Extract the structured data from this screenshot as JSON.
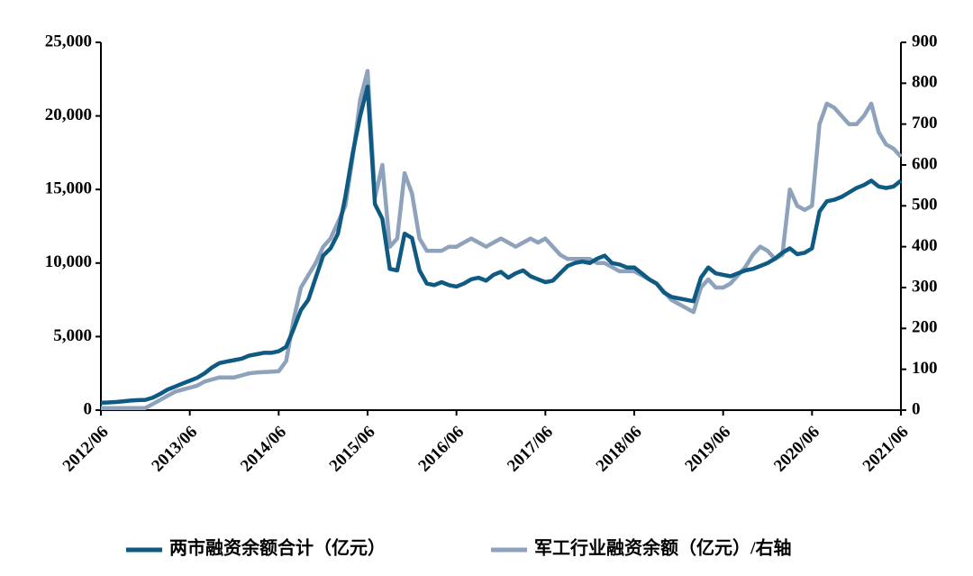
{
  "chart_data": {
    "type": "line",
    "x": [
      "2012/06",
      "2012/07",
      "2012/08",
      "2012/09",
      "2012/10",
      "2012/11",
      "2012/12",
      "2013/01",
      "2013/02",
      "2013/03",
      "2013/04",
      "2013/05",
      "2013/06",
      "2013/07",
      "2013/08",
      "2013/09",
      "2013/10",
      "2013/11",
      "2013/12",
      "2014/01",
      "2014/02",
      "2014/03",
      "2014/04",
      "2014/05",
      "2014/06",
      "2014/07",
      "2014/08",
      "2014/09",
      "2014/10",
      "2014/11",
      "2014/12",
      "2015/01",
      "2015/02",
      "2015/03",
      "2015/04",
      "2015/05",
      "2015/06",
      "2015/07",
      "2015/08",
      "2015/09",
      "2015/10",
      "2015/11",
      "2015/12",
      "2016/01",
      "2016/02",
      "2016/03",
      "2016/04",
      "2016/05",
      "2016/06",
      "2016/07",
      "2016/08",
      "2016/09",
      "2016/10",
      "2016/11",
      "2016/12",
      "2017/01",
      "2017/02",
      "2017/03",
      "2017/04",
      "2017/05",
      "2017/06",
      "2017/07",
      "2017/08",
      "2017/09",
      "2017/10",
      "2017/11",
      "2017/12",
      "2018/01",
      "2018/02",
      "2018/03",
      "2018/04",
      "2018/05",
      "2018/06",
      "2018/07",
      "2018/08",
      "2018/09",
      "2018/10",
      "2018/11",
      "2018/12",
      "2019/01",
      "2019/02",
      "2019/03",
      "2019/04",
      "2019/05",
      "2019/06",
      "2019/07",
      "2019/08",
      "2019/09",
      "2019/10",
      "2019/11",
      "2019/12",
      "2020/01",
      "2020/02",
      "2020/03",
      "2020/04",
      "2020/05",
      "2020/06",
      "2020/07",
      "2020/08",
      "2020/09",
      "2020/10",
      "2020/11",
      "2020/12",
      "2021/01",
      "2021/02",
      "2021/03",
      "2021/04",
      "2021/05",
      "2021/06"
    ],
    "xticks": [
      "2012/06",
      "2013/06",
      "2014/06",
      "2015/06",
      "2016/06",
      "2017/06",
      "2018/06",
      "2019/06",
      "2020/06",
      "2021/06"
    ],
    "ylim": [
      0,
      25000
    ],
    "yticks": [
      0,
      {
        "value": 5000,
        "label": "5,000"
      },
      {
        "value": 10000,
        "label": "10,000"
      },
      {
        "value": 15000,
        "label": "15,000"
      },
      {
        "value": 20000,
        "label": "20,000"
      },
      {
        "value": 25000,
        "label": "25,000"
      }
    ],
    "y2lim": [
      0,
      900
    ],
    "y2ticks": [
      0,
      100,
      200,
      300,
      400,
      500,
      600,
      700,
      800,
      900
    ],
    "series": [
      {
        "name": "两市融资余额合计（亿元）",
        "color": "#0e5a82",
        "axis": "y",
        "values": [
          500,
          520,
          550,
          600,
          650,
          680,
          700,
          850,
          1100,
          1400,
          1600,
          1800,
          2000,
          2200,
          2500,
          2900,
          3200,
          3300,
          3400,
          3500,
          3700,
          3800,
          3900,
          3900,
          4000,
          4300,
          5500,
          6800,
          7500,
          9000,
          10500,
          11000,
          12000,
          14500,
          17500,
          20000,
          22000,
          14000,
          13000,
          9600,
          9500,
          12000,
          11700,
          9500,
          8600,
          8500,
          8700,
          8500,
          8400,
          8600,
          8900,
          9000,
          8800,
          9200,
          9400,
          9000,
          9300,
          9500,
          9100,
          8900,
          8700,
          8800,
          9300,
          9800,
          10000,
          10100,
          10000,
          10300,
          10500,
          10000,
          9900,
          9700,
          9700,
          9300,
          8900,
          8600,
          8000,
          7700,
          7600,
          7500,
          7400,
          9000,
          9700,
          9300,
          9200,
          9100,
          9300,
          9500,
          9600,
          9800,
          10000,
          10300,
          10700,
          11000,
          10600,
          10700,
          11000,
          13500,
          14200,
          14300,
          14500,
          14800,
          15100,
          15300,
          15600,
          15200,
          15100,
          15200,
          15600
        ]
      },
      {
        "name": "军工行业融资余额（亿元）/右轴",
        "color": "#8ea3bb",
        "axis": "y2",
        "values": [
          5,
          5,
          5,
          5,
          5,
          5,
          5,
          15,
          25,
          35,
          45,
          50,
          55,
          60,
          70,
          75,
          80,
          80,
          80,
          85,
          90,
          92,
          93,
          94,
          95,
          120,
          220,
          300,
          330,
          360,
          400,
          420,
          460,
          500,
          620,
          760,
          830,
          520,
          600,
          400,
          420,
          580,
          530,
          420,
          390,
          390,
          390,
          400,
          400,
          410,
          420,
          410,
          400,
          410,
          420,
          410,
          400,
          410,
          420,
          410,
          420,
          400,
          380,
          370,
          370,
          370,
          370,
          360,
          360,
          350,
          340,
          340,
          340,
          330,
          320,
          310,
          290,
          270,
          260,
          250,
          240,
          300,
          320,
          300,
          300,
          310,
          330,
          350,
          380,
          400,
          390,
          370,
          380,
          540,
          500,
          490,
          500,
          700,
          750,
          740,
          720,
          700,
          700,
          720,
          750,
          680,
          650,
          640,
          620
        ]
      }
    ]
  }
}
